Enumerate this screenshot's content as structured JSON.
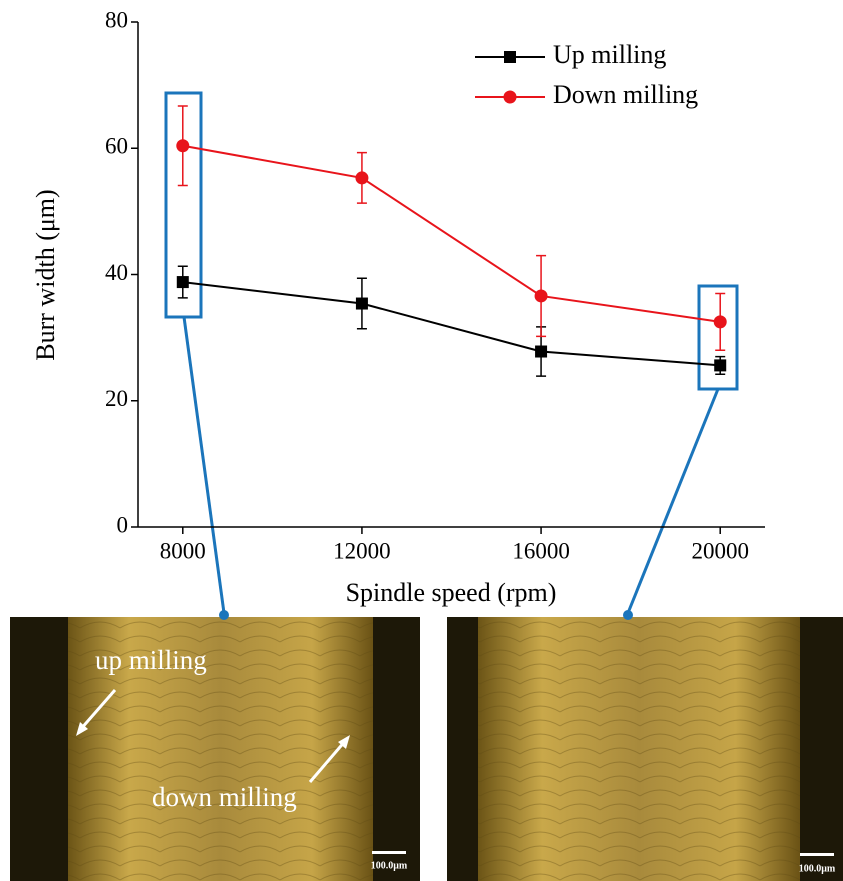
{
  "chart_data": {
    "type": "line",
    "x_label": "Spindle speed (rpm)",
    "y_label": "Burr width (μm)",
    "x": [
      8000,
      12000,
      16000,
      20000
    ],
    "series": [
      {
        "name": "Up milling",
        "color": "#000000",
        "marker": "square",
        "values": [
          38.8,
          35.4,
          27.8,
          25.6
        ],
        "errors": [
          2.5,
          4,
          3.9,
          1.4
        ]
      },
      {
        "name": "Down milling",
        "color": "#e8141b",
        "marker": "circle",
        "values": [
          60.4,
          55.3,
          36.6,
          32.5
        ],
        "errors": [
          6.3,
          4,
          6.4,
          4.5
        ]
      }
    ],
    "xlim": [
      7000,
      21000
    ],
    "xticks": [
      8000,
      12000,
      16000,
      20000
    ],
    "ylim": [
      0,
      80
    ],
    "yticks": [
      0,
      20,
      40,
      60,
      80
    ],
    "legend": "upper right"
  },
  "images": [
    {
      "annotations": [
        "up milling",
        "down milling"
      ],
      "scale_bar": "100.0μm"
    },
    {
      "scale_bar": "100.0μm"
    }
  ]
}
